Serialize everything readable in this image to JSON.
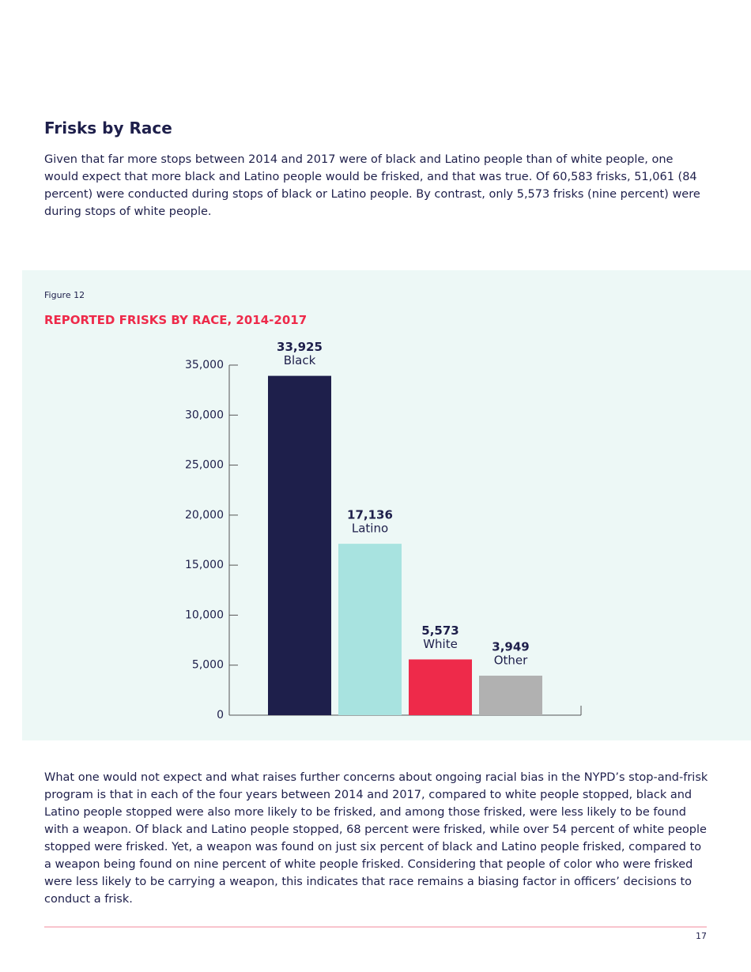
{
  "heading": "Frisks by Race",
  "intro": "Given that far more stops between 2014 and 2017 were of black and Latino people than of white people, one would expect that more black and Latino people would be frisked, and that was true. Of 60,583 frisks, 51,061 (84 percent) were conducted during stops of black or Latino people. By contrast, only 5,573 frisks (nine percent) were during stops of white people.",
  "figure_label": "Figure 12",
  "chart_data": {
    "type": "bar",
    "title": "REPORTED FRISKS BY RACE, 2014-2017",
    "categories": [
      "Black",
      "Latino",
      "White",
      "Other"
    ],
    "values": [
      33925,
      17136,
      5573,
      3949
    ],
    "value_labels": [
      "33,925",
      "17,136",
      "5,573",
      "3,949"
    ],
    "colors": [
      "#1e1f4b",
      "#a8e3e0",
      "#ee2a4a",
      "#b1b1b1"
    ],
    "ylim": [
      0,
      35000
    ],
    "yticks": [
      0,
      {
        "value": 5000,
        "label": "5,000"
      },
      {
        "value": 10000,
        "label": "10,000"
      },
      {
        "value": 15000,
        "label": "15,000"
      },
      {
        "value": 20000,
        "label": "20,000"
      },
      {
        "value": 25000,
        "label": "25,000"
      },
      {
        "value": 30000,
        "label": "30,000"
      },
      {
        "value": 35000,
        "label": "35,000"
      }
    ]
  },
  "body": "What one would not expect and what raises further concerns about ongoing racial bias in the NYPD’s stop-and-frisk program is that in each of the four years between 2014 and 2017, compared to white people stopped, black and Latino people stopped were also more likely to be frisked, and among those frisked, were less likely to be found with a weapon. Of black and Latino people stopped, 68 percent were frisked, while over 54 percent of white people stopped were frisked. Yet, a weapon was found on just six percent of black and Latino people frisked, compared to a weapon being found on nine percent of white people frisked. Considering that people of color who were frisked were less likely to be carrying a weapon, this indicates that race remains a biasing factor in officers’ decisions to conduct a frisk.",
  "page_number": "17"
}
